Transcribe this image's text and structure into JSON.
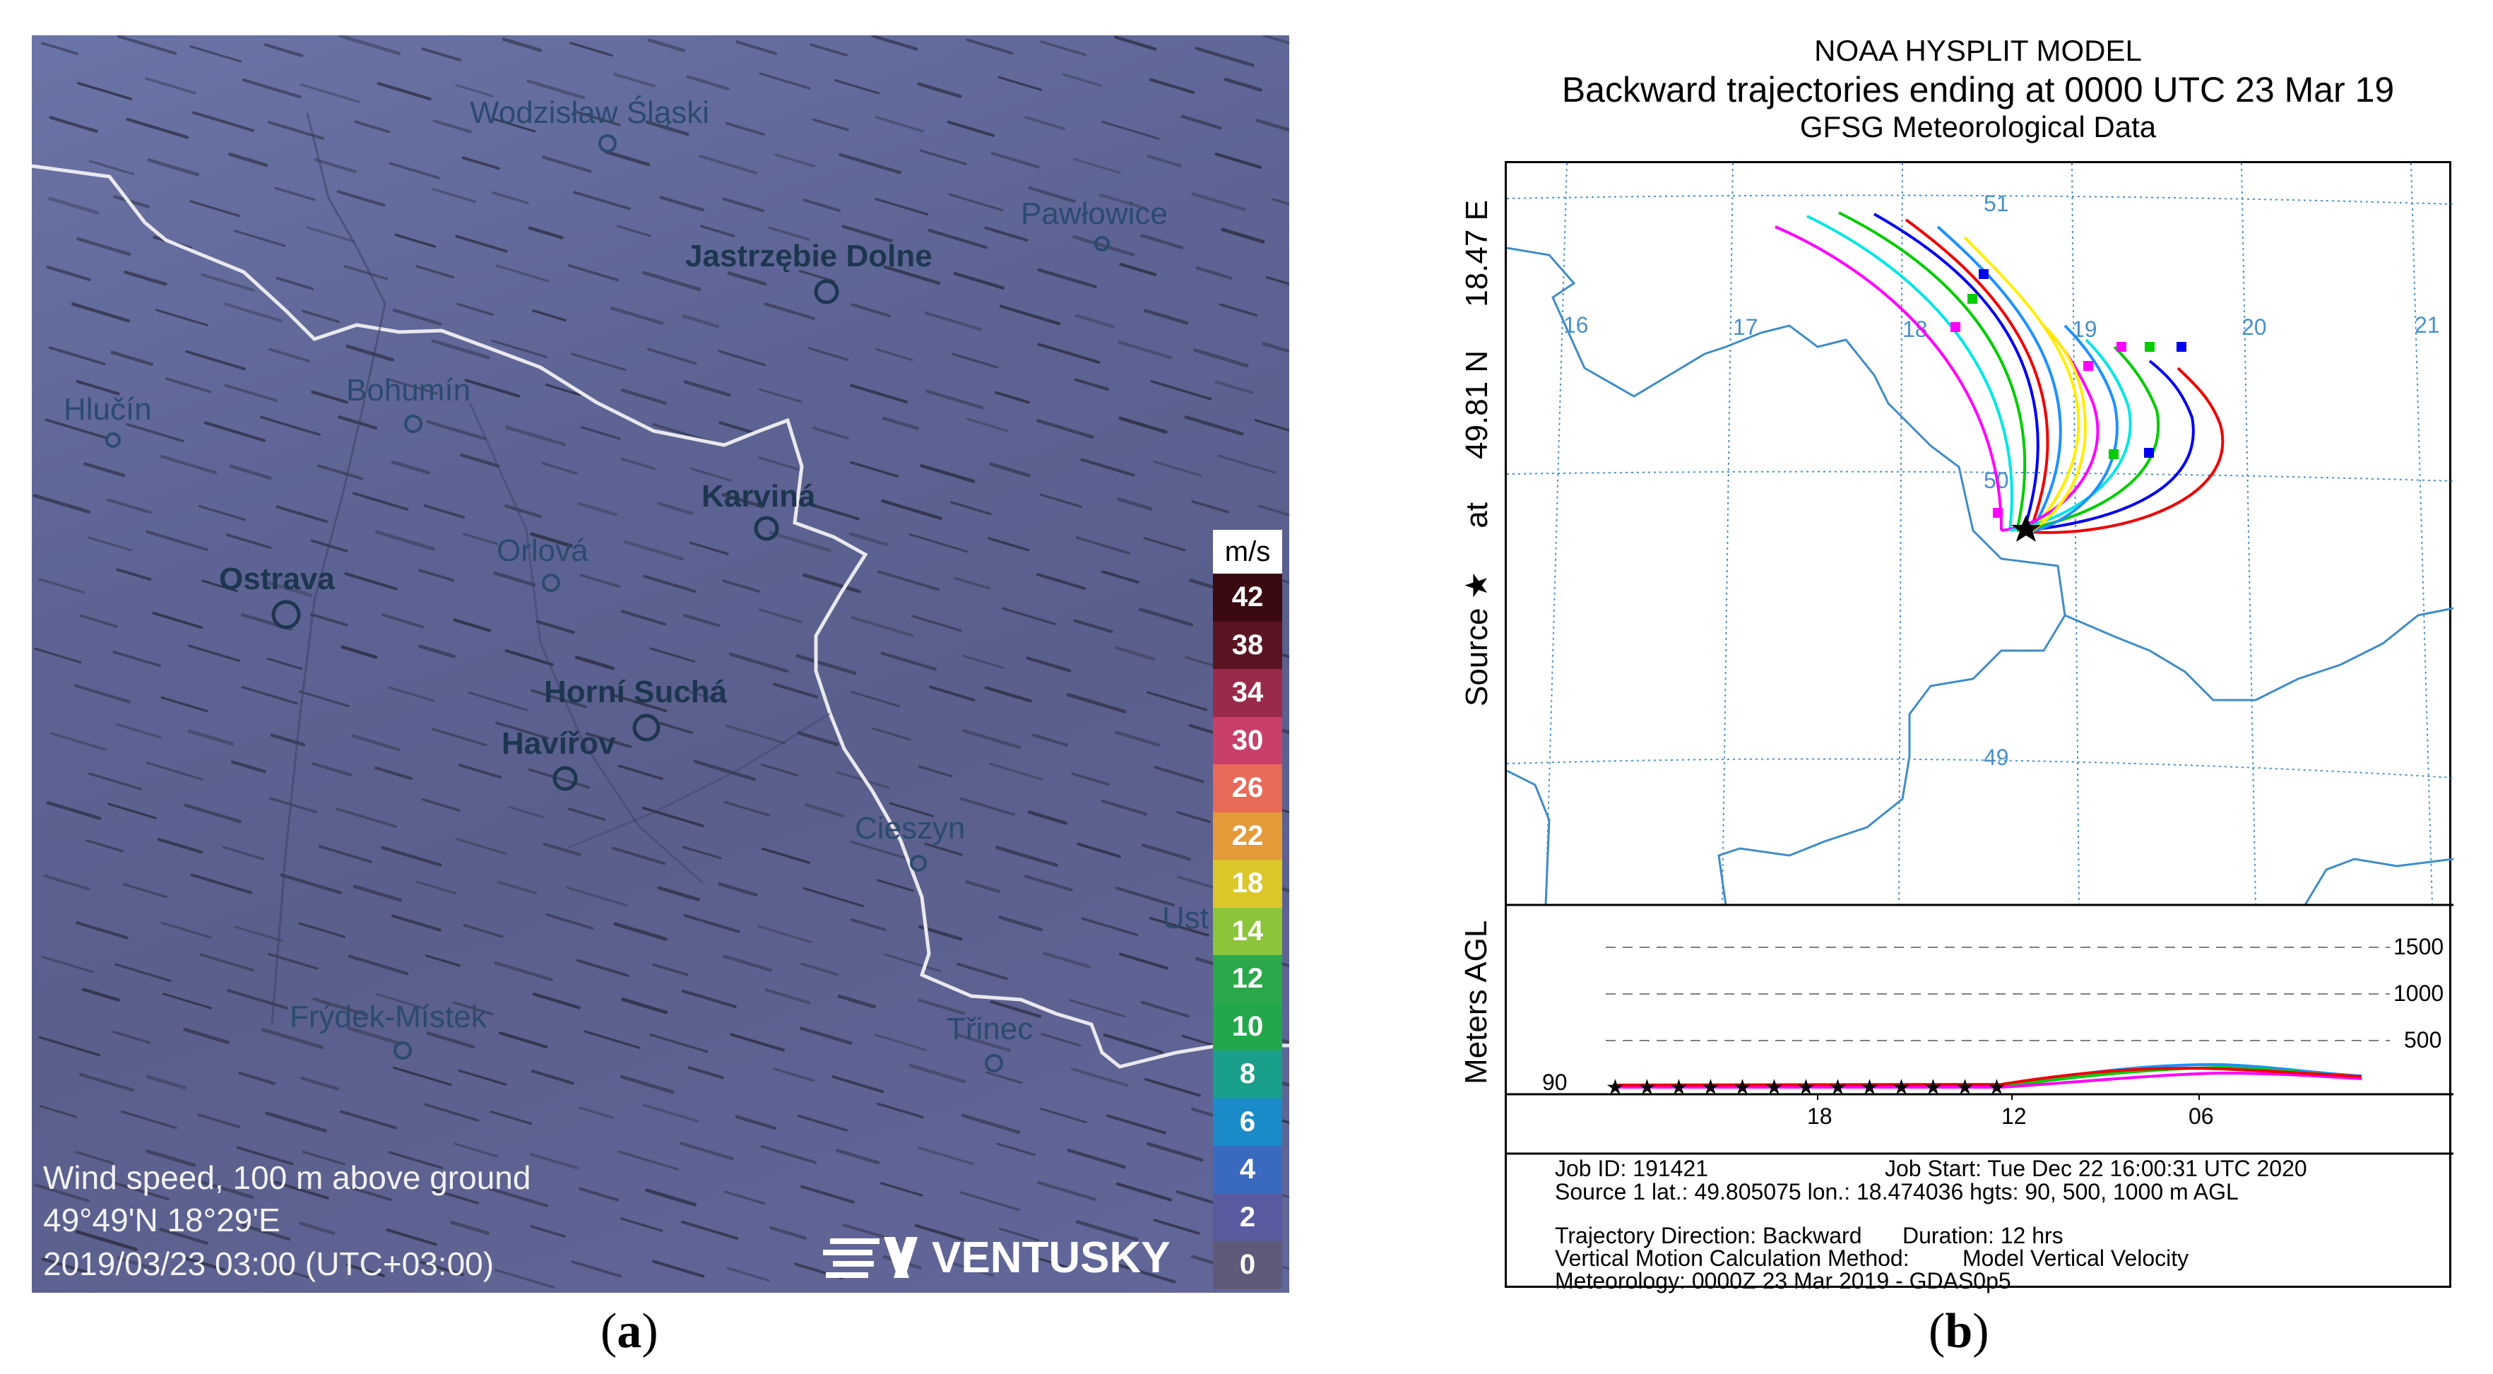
{
  "panel_a": {
    "cities": [
      {
        "name": "Wodzisław Śląski",
        "bold": false
      },
      {
        "name": "Pawłowice",
        "bold": false
      },
      {
        "name": "Jastrzębie Dolne",
        "bold": true
      },
      {
        "name": "Hlučín",
        "bold": false
      },
      {
        "name": "Bohumín",
        "bold": false
      },
      {
        "name": "Karviná",
        "bold": true
      },
      {
        "name": "Orlová",
        "bold": false
      },
      {
        "name": "Ostrava",
        "bold": true
      },
      {
        "name": "Horní Suchá",
        "bold": true
      },
      {
        "name": "Havířov",
        "bold": true
      },
      {
        "name": "Cieszyn",
        "bold": false
      },
      {
        "name": "Ust",
        "bold": false
      },
      {
        "name": "Frýdek-Místek",
        "bold": false
      },
      {
        "name": "Třinec",
        "bold": false
      }
    ],
    "legend": {
      "unit": "m/s",
      "values": [
        "42",
        "38",
        "34",
        "30",
        "26",
        "22",
        "18",
        "14",
        "12",
        "10",
        "8",
        "6",
        "4",
        "2",
        "0"
      ],
      "colors": [
        "#3a0a10",
        "#5a1422",
        "#9a2a4a",
        "#c8406a",
        "#e86a5a",
        "#e59a3a",
        "#dcc72a",
        "#8cc43a",
        "#2aa84a",
        "#22a84a",
        "#1aa08a",
        "#1a8ac8",
        "#3a6ac0",
        "#5a5aa0",
        "#5e5a7a"
      ]
    },
    "info": {
      "line1": "Wind speed, 100 m above ground",
      "line2": "49°49'N 18°29'E",
      "line3": "2019/03/23 03:00 (UTC+03:00)"
    },
    "brand": "VENTUSKY",
    "caption_letter": "a"
  },
  "panel_b": {
    "title1": "NOAA HYSPLIT MODEL",
    "title2": "Backward trajectories ending at 0000 UTC 23 Mar 19",
    "title3": "GFSG Meteorological Data",
    "side_label_parts": [
      "Source ★",
      "at",
      "49.81 N",
      "18.47 E"
    ],
    "lon_labels": [
      "16",
      "17",
      "18",
      "19",
      "20",
      "21"
    ],
    "lat_labels": [
      "51",
      "50",
      "49"
    ],
    "vertical_axis_label": "Meters AGL",
    "height_ticks": [
      "1500",
      "1000",
      "500"
    ],
    "height_start": "90",
    "time_ticks": [
      "18",
      "12",
      "06"
    ],
    "info": {
      "job_id": "Job ID: 191421",
      "job_start": "Job Start: Tue Dec 22 16:00:31 UTC 2020",
      "source": "Source 1 lat.: 49.805075  lon.: 18.474036  hgts: 90, 500, 1000 m AGL",
      "direction": "Trajectory Direction: Backward",
      "duration": "Duration: 12 hrs",
      "vertical_method": "Vertical Motion Calculation Method:",
      "vertical_model": "Model Vertical Velocity",
      "meteorology": "Meteorology: 0000Z 23 Mar 2019 - GDAS0p5"
    },
    "trajectory_colors": [
      "#ff00ff",
      "#00e5e5",
      "#00cc00",
      "#0000ee",
      "#ee0000",
      "#1e90ff",
      "#ffee00"
    ],
    "caption_letter": "b"
  }
}
